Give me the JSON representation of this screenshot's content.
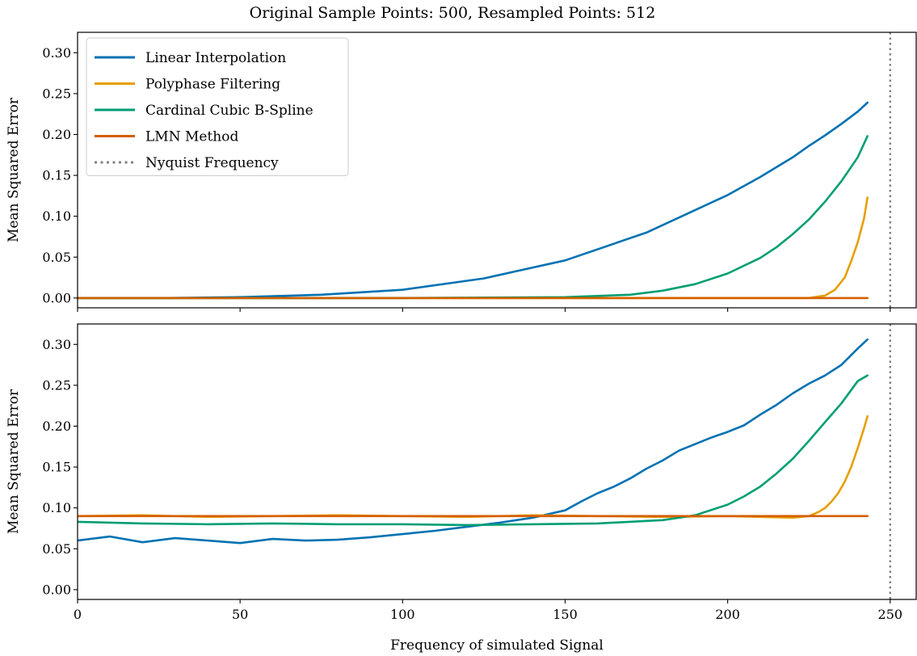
{
  "chart_data": {
    "type": "line",
    "title": "Original Sample Points: 500, Resampled Points: 512",
    "xlabel": "Frequency of simulated Signal",
    "x_ticks": [
      "0",
      "50",
      "100",
      "150",
      "200",
      "250"
    ],
    "xlim": [
      0,
      258
    ],
    "nyquist": {
      "name": "Nyquist Frequency",
      "x": 250,
      "color": "#808080"
    },
    "panels": [
      {
        "id": "top",
        "ylabel": "Mean Squared Error",
        "ylim": [
          -0.012,
          0.325
        ],
        "y_ticks": [
          "0.00",
          "0.05",
          "0.10",
          "0.15",
          "0.20",
          "0.25",
          "0.30"
        ],
        "legend": "top-left",
        "series": [
          {
            "name": "Linear Interpolation",
            "color": "#0072B2",
            "x": [
              0,
              25,
              50,
              75,
              100,
              125,
              150,
              175,
              200,
              210,
              220,
              225,
              230,
              235,
              240,
              243
            ],
            "y": [
              0.0,
              0.0,
              0.001,
              0.004,
              0.01,
              0.024,
              0.046,
              0.08,
              0.126,
              0.148,
              0.172,
              0.186,
              0.199,
              0.213,
              0.228,
              0.239
            ]
          },
          {
            "name": "Polyphase Filtering",
            "color": "#E69F00",
            "x": [
              0,
              50,
              100,
              150,
              200,
              220,
              225,
              230,
              233,
              236,
              238,
              240,
              242,
              243
            ],
            "y": [
              0.0,
              0.0,
              0.0,
              0.0,
              0.0,
              0.0,
              0.0,
              0.003,
              0.01,
              0.025,
              0.045,
              0.068,
              0.098,
              0.123
            ]
          },
          {
            "name": "Cardinal Cubic B-Spline",
            "color": "#009E73",
            "x": [
              0,
              100,
              150,
              170,
              180,
              190,
              200,
              210,
              215,
              220,
              225,
              230,
              235,
              240,
              243
            ],
            "y": [
              0.0,
              0.0,
              0.001,
              0.004,
              0.009,
              0.017,
              0.03,
              0.049,
              0.062,
              0.078,
              0.096,
              0.118,
              0.143,
              0.172,
              0.198
            ]
          },
          {
            "name": "LMN Method",
            "color": "#D55E00",
            "x": [
              0,
              243
            ],
            "y": [
              0.0,
              0.0
            ]
          }
        ]
      },
      {
        "id": "bottom",
        "ylabel": "Mean Squared Error",
        "ylim": [
          -0.012,
          0.325
        ],
        "y_ticks": [
          "0.00",
          "0.05",
          "0.10",
          "0.15",
          "0.20",
          "0.25",
          "0.30"
        ],
        "series": [
          {
            "name": "Linear Interpolation",
            "color": "#0072B2",
            "x": [
              0,
              10,
              20,
              30,
              40,
              50,
              60,
              70,
              80,
              90,
              100,
              110,
              120,
              130,
              140,
              150,
              155,
              160,
              165,
              170,
              175,
              180,
              185,
              190,
              195,
              200,
              205,
              210,
              215,
              220,
              225,
              230,
              235,
              240,
              243
            ],
            "y": [
              0.06,
              0.065,
              0.058,
              0.063,
              0.06,
              0.057,
              0.062,
              0.06,
              0.061,
              0.064,
              0.068,
              0.072,
              0.077,
              0.082,
              0.088,
              0.097,
              0.108,
              0.118,
              0.126,
              0.136,
              0.148,
              0.158,
              0.17,
              0.178,
              0.186,
              0.193,
              0.201,
              0.214,
              0.226,
              0.24,
              0.252,
              0.262,
              0.275,
              0.295,
              0.306
            ]
          },
          {
            "name": "Polyphase Filtering",
            "color": "#E69F00",
            "x": [
              0,
              20,
              40,
              60,
              80,
              100,
              120,
              140,
              160,
              180,
              200,
              210,
              220,
              225,
              228,
              230,
              232,
              234,
              236,
              238,
              240,
              242,
              243
            ],
            "y": [
              0.09,
              0.091,
              0.089,
              0.09,
              0.091,
              0.09,
              0.089,
              0.091,
              0.09,
              0.089,
              0.09,
              0.089,
              0.088,
              0.09,
              0.095,
              0.1,
              0.108,
              0.118,
              0.132,
              0.15,
              0.173,
              0.198,
              0.212
            ]
          },
          {
            "name": "Cardinal Cubic B-Spline",
            "color": "#009E73",
            "x": [
              0,
              20,
              40,
              60,
              80,
              100,
              120,
              140,
              160,
              180,
              190,
              200,
              205,
              210,
              215,
              220,
              225,
              230,
              235,
              240,
              243
            ],
            "y": [
              0.083,
              0.081,
              0.08,
              0.081,
              0.08,
              0.08,
              0.079,
              0.08,
              0.081,
              0.085,
              0.091,
              0.104,
              0.114,
              0.126,
              0.142,
              0.16,
              0.182,
              0.205,
              0.228,
              0.255,
              0.262
            ]
          },
          {
            "name": "LMN Method",
            "color": "#D55E00",
            "x": [
              0,
              243
            ],
            "y": [
              0.09,
              0.09
            ]
          }
        ]
      }
    ]
  }
}
